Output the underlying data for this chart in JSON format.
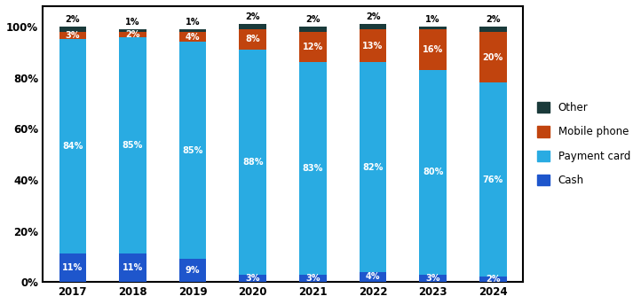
{
  "years": [
    "2017",
    "2018",
    "2019",
    "2020",
    "2021",
    "2022",
    "2023",
    "2024"
  ],
  "cash": [
    11,
    11,
    9,
    3,
    3,
    4,
    3,
    2
  ],
  "payment_card": [
    84,
    85,
    85,
    88,
    83,
    82,
    80,
    76
  ],
  "mobile_phone": [
    3,
    2,
    4,
    8,
    12,
    13,
    16,
    20
  ],
  "other": [
    2,
    1,
    1,
    2,
    2,
    2,
    1,
    2
  ],
  "cash_labels": [
    "11%",
    "11%",
    "9%",
    "3%",
    "3%",
    "4%",
    "3%",
    "2%"
  ],
  "payment_card_labels": [
    "84%",
    "85%",
    "85%",
    "88%",
    "83%",
    "82%",
    "80%",
    "76%"
  ],
  "mobile_phone_labels": [
    "3%",
    "2%",
    "4%",
    "8%",
    "12%",
    "13%",
    "16%",
    "20%"
  ],
  "other_labels": [
    "2%",
    "1%",
    "1%",
    "2%",
    "2%",
    "2%",
    "1%",
    "2%"
  ],
  "color_cash": "#1E56CC",
  "color_payment_card": "#29ABE2",
  "color_mobile_phone": "#C1440E",
  "color_other": "#1A3A3A",
  "ylabel_ticks": [
    "0%",
    "20%",
    "40%",
    "60%",
    "80%",
    "100%"
  ],
  "ytick_vals": [
    0,
    20,
    40,
    60,
    80,
    100
  ],
  "bar_width": 0.45,
  "figsize": [
    7.22,
    3.43
  ],
  "dpi": 100
}
